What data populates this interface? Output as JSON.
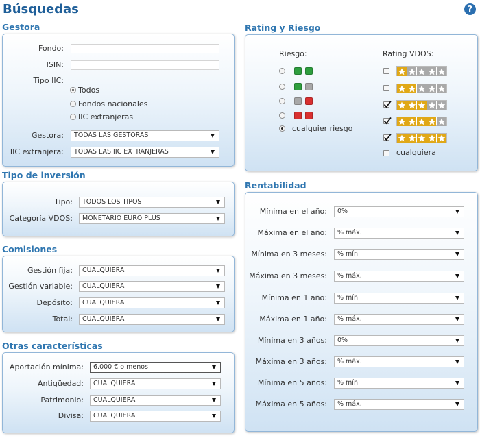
{
  "header": {
    "title": "Búsquedas",
    "help": "?"
  },
  "gestora": {
    "title": "Gestora",
    "inputs": [
      {
        "label": "Fondo:"
      },
      {
        "label": "ISIN:"
      }
    ],
    "tipo_label": "Tipo IIC:",
    "tipo_options": [
      {
        "label": "Todos",
        "checked": true
      },
      {
        "label": "Fondos nacionales",
        "checked": false
      },
      {
        "label": "IIC extranjeras",
        "checked": false
      }
    ],
    "rows": [
      {
        "label": "Gestora:",
        "value": "TODAS LAS GESTORAS"
      },
      {
        "label": "IIC extranjera:",
        "value": "TODAS LAS IIC EXTRANJERAS"
      }
    ]
  },
  "tipo_inversion": {
    "title": "Tipo de inversión",
    "rows": [
      {
        "label": "Tipo:",
        "value": "TODOS LOS TIPOS"
      },
      {
        "label": "Categoría VDOS:",
        "value": "MONETARIO EURO PLUS"
      }
    ]
  },
  "comisiones": {
    "title": "Comisiones",
    "rows": [
      {
        "label": "Gestión fija:",
        "value": "CUALQUIERA"
      },
      {
        "label": "Gestión variable:",
        "value": "CUALQUIERA"
      },
      {
        "label": "Depósito:",
        "value": "CUALQUIERA"
      },
      {
        "label": "Total:",
        "value": "CUALQUIERA"
      }
    ]
  },
  "otras": {
    "title": "Otras características",
    "rows": [
      {
        "label": "Aportación mínima:",
        "value": "6.000 € o menos",
        "focused": true
      },
      {
        "label": "Antigüedad:",
        "value": "CUALQUIERA"
      },
      {
        "label": "Patrimonio:",
        "value": "CUALQUIERA"
      },
      {
        "label": "Divisa:",
        "value": "CUALQUIERA"
      }
    ]
  },
  "rating": {
    "title": "Rating y Riesgo",
    "riesgo_label": "Riesgo:",
    "rating_label": "Rating VDOS:",
    "risk_rows": [
      {
        "levels": [
          "#2e9e3e",
          "#2e9e3e"
        ],
        "checked": false
      },
      {
        "levels": [
          "#2e9e3e",
          "#a8a8a8"
        ],
        "checked": false
      },
      {
        "levels": [
          "#a8a8a8",
          "#d93030"
        ],
        "checked": false
      },
      {
        "levels": [
          "#d93030",
          "#d93030"
        ],
        "checked": false
      }
    ],
    "risk_any": {
      "label": "cualquier riesgo",
      "checked": true
    },
    "rating_rows": [
      {
        "stars": 1,
        "checked": false
      },
      {
        "stars": 2,
        "checked": false
      },
      {
        "stars": 3,
        "checked": true
      },
      {
        "stars": 4,
        "checked": true
      },
      {
        "stars": 5,
        "checked": true
      }
    ],
    "rating_any": {
      "label": "cualquiera",
      "checked": false
    }
  },
  "rentabilidad": {
    "title": "Rentabilidad",
    "rows": [
      {
        "label": "Mínima en el año:",
        "value": "0%"
      },
      {
        "label": "Máxima en el año:",
        "value": "% máx."
      },
      {
        "label": "Mínima en 3 meses:",
        "value": "% mín."
      },
      {
        "label": "Máxima en 3 meses:",
        "value": "% máx."
      },
      {
        "label": "Mínima en 1 año:",
        "value": "% mín."
      },
      {
        "label": "Máxima en 1 año:",
        "value": "% máx."
      },
      {
        "label": "Mínima en 3 años:",
        "value": "0%"
      },
      {
        "label": "Máxima en 3 años:",
        "value": "% máx."
      },
      {
        "label": "Mínima en 5 años:",
        "value": "% mín."
      },
      {
        "label": "Máxima en 5 años:",
        "value": "% máx."
      }
    ]
  }
}
